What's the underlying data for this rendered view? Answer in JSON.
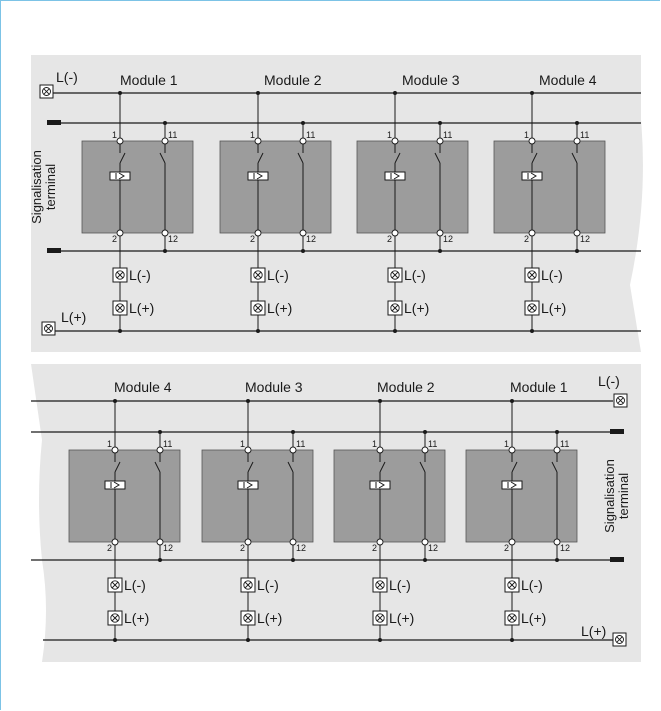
{
  "diagrams": [
    {
      "modules": [
        "Module 1",
        "Module 2",
        "Module 3",
        "Module 4"
      ],
      "top_supply_label": "L(-)",
      "bottom_supply_label": "L(+)",
      "side_label": [
        "Signalisation",
        "terminal"
      ],
      "module_terminals": [
        "L(-)",
        "L(+)"
      ],
      "pins": [
        "1",
        "11",
        "2",
        "12"
      ]
    },
    {
      "modules": [
        "Module 4",
        "Module 3",
        "Module 2",
        "Module 1"
      ],
      "top_supply_label": "L(-)",
      "bottom_supply_label": "L(+)",
      "side_label": [
        "Signalisation",
        "terminal"
      ],
      "module_terminals": [
        "L(-)",
        "L(+)"
      ],
      "pins": [
        "1",
        "11",
        "2",
        "12"
      ]
    }
  ],
  "colors": {
    "panel": "#e6e6e6",
    "module_box": "#9c9c9c",
    "line": "#1a1a1a",
    "frame": "#7cc3e6"
  }
}
